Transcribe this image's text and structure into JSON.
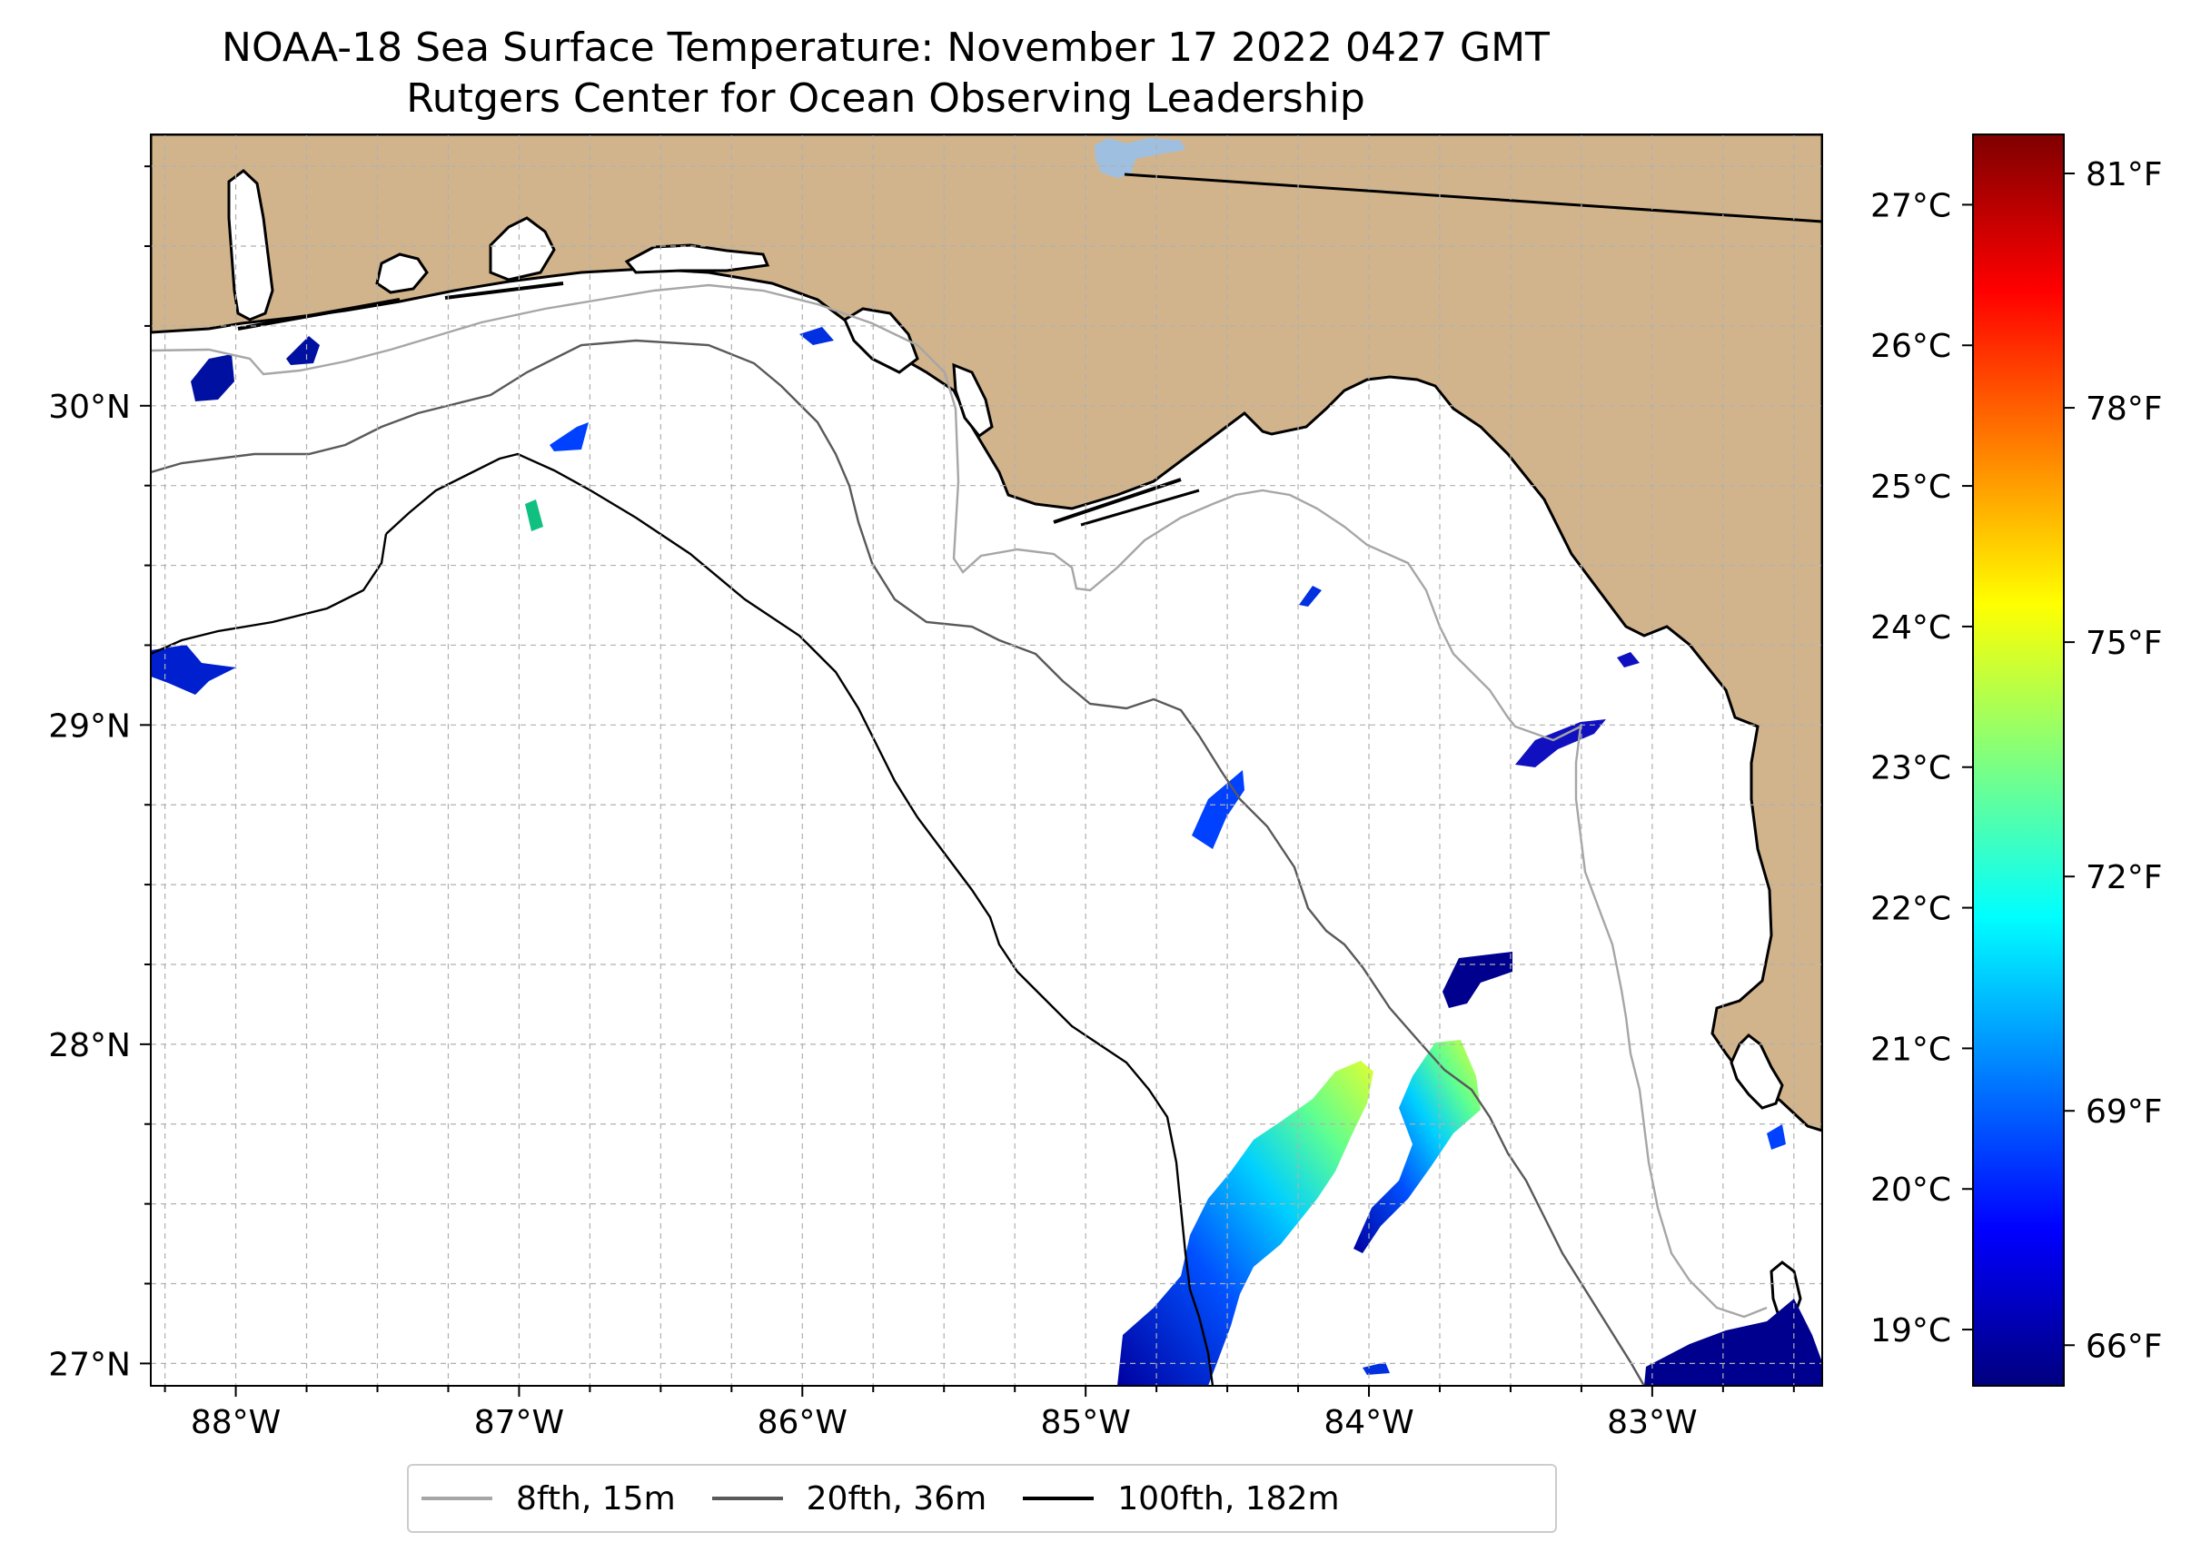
{
  "title": {
    "line1": "NOAA-18 Sea Surface Temperature: November 17 2022 0427 GMT",
    "line2": "Rutgers Center for Ocean Observing Leadership"
  },
  "map": {
    "lon_range": [
      -88.3,
      -82.4
    ],
    "lat_range": [
      26.93,
      30.85
    ],
    "lon_ticks": [
      {
        "value": -88,
        "label": "88°W"
      },
      {
        "value": -87,
        "label": "87°W"
      },
      {
        "value": -86,
        "label": "86°W"
      },
      {
        "value": -85,
        "label": "85°W"
      },
      {
        "value": -84,
        "label": "84°W"
      },
      {
        "value": -83,
        "label": "83°W"
      }
    ],
    "lat_ticks": [
      {
        "value": 27,
        "label": "27°N"
      },
      {
        "value": 28,
        "label": "28°N"
      },
      {
        "value": 29,
        "label": "29°N"
      },
      {
        "value": 30,
        "label": "30°N"
      }
    ],
    "colors": {
      "land": "#d2b48c",
      "water_body": "#9fbfe0",
      "contour_8": "#a6a6a6",
      "contour_20": "#595959",
      "contour_100": "#000000",
      "grid": "#b0b0b0"
    }
  },
  "colorbar": {
    "celsius_ticks": [
      {
        "value": 19,
        "label": "19°C"
      },
      {
        "value": 20,
        "label": "20°C"
      },
      {
        "value": 21,
        "label": "21°C"
      },
      {
        "value": 22,
        "label": "22°C"
      },
      {
        "value": 23,
        "label": "23°C"
      },
      {
        "value": 24,
        "label": "24°C"
      },
      {
        "value": 25,
        "label": "25°C"
      },
      {
        "value": 26,
        "label": "26°C"
      },
      {
        "value": 27,
        "label": "27°C"
      }
    ],
    "fahrenheit_ticks": [
      {
        "value": 66,
        "label": "66°F"
      },
      {
        "value": 69,
        "label": "69°F"
      },
      {
        "value": 72,
        "label": "72°F"
      },
      {
        "value": 75,
        "label": "75°F"
      },
      {
        "value": 78,
        "label": "78°F"
      },
      {
        "value": 81,
        "label": "81°F"
      }
    ],
    "range_celsius": [
      18.6,
      27.5
    ],
    "colormap": [
      "#00007f",
      "#0000ff",
      "#007fff",
      "#00ffff",
      "#7fff7f",
      "#ffff00",
      "#ff7f00",
      "#ff0000",
      "#7f0000"
    ]
  },
  "legend": {
    "items": [
      {
        "label": "8fth, 15m",
        "color": "#a6a6a6"
      },
      {
        "label": "20fth, 36m",
        "color": "#595959"
      },
      {
        "label": "100fth, 182m",
        "color": "#000000"
      }
    ]
  }
}
